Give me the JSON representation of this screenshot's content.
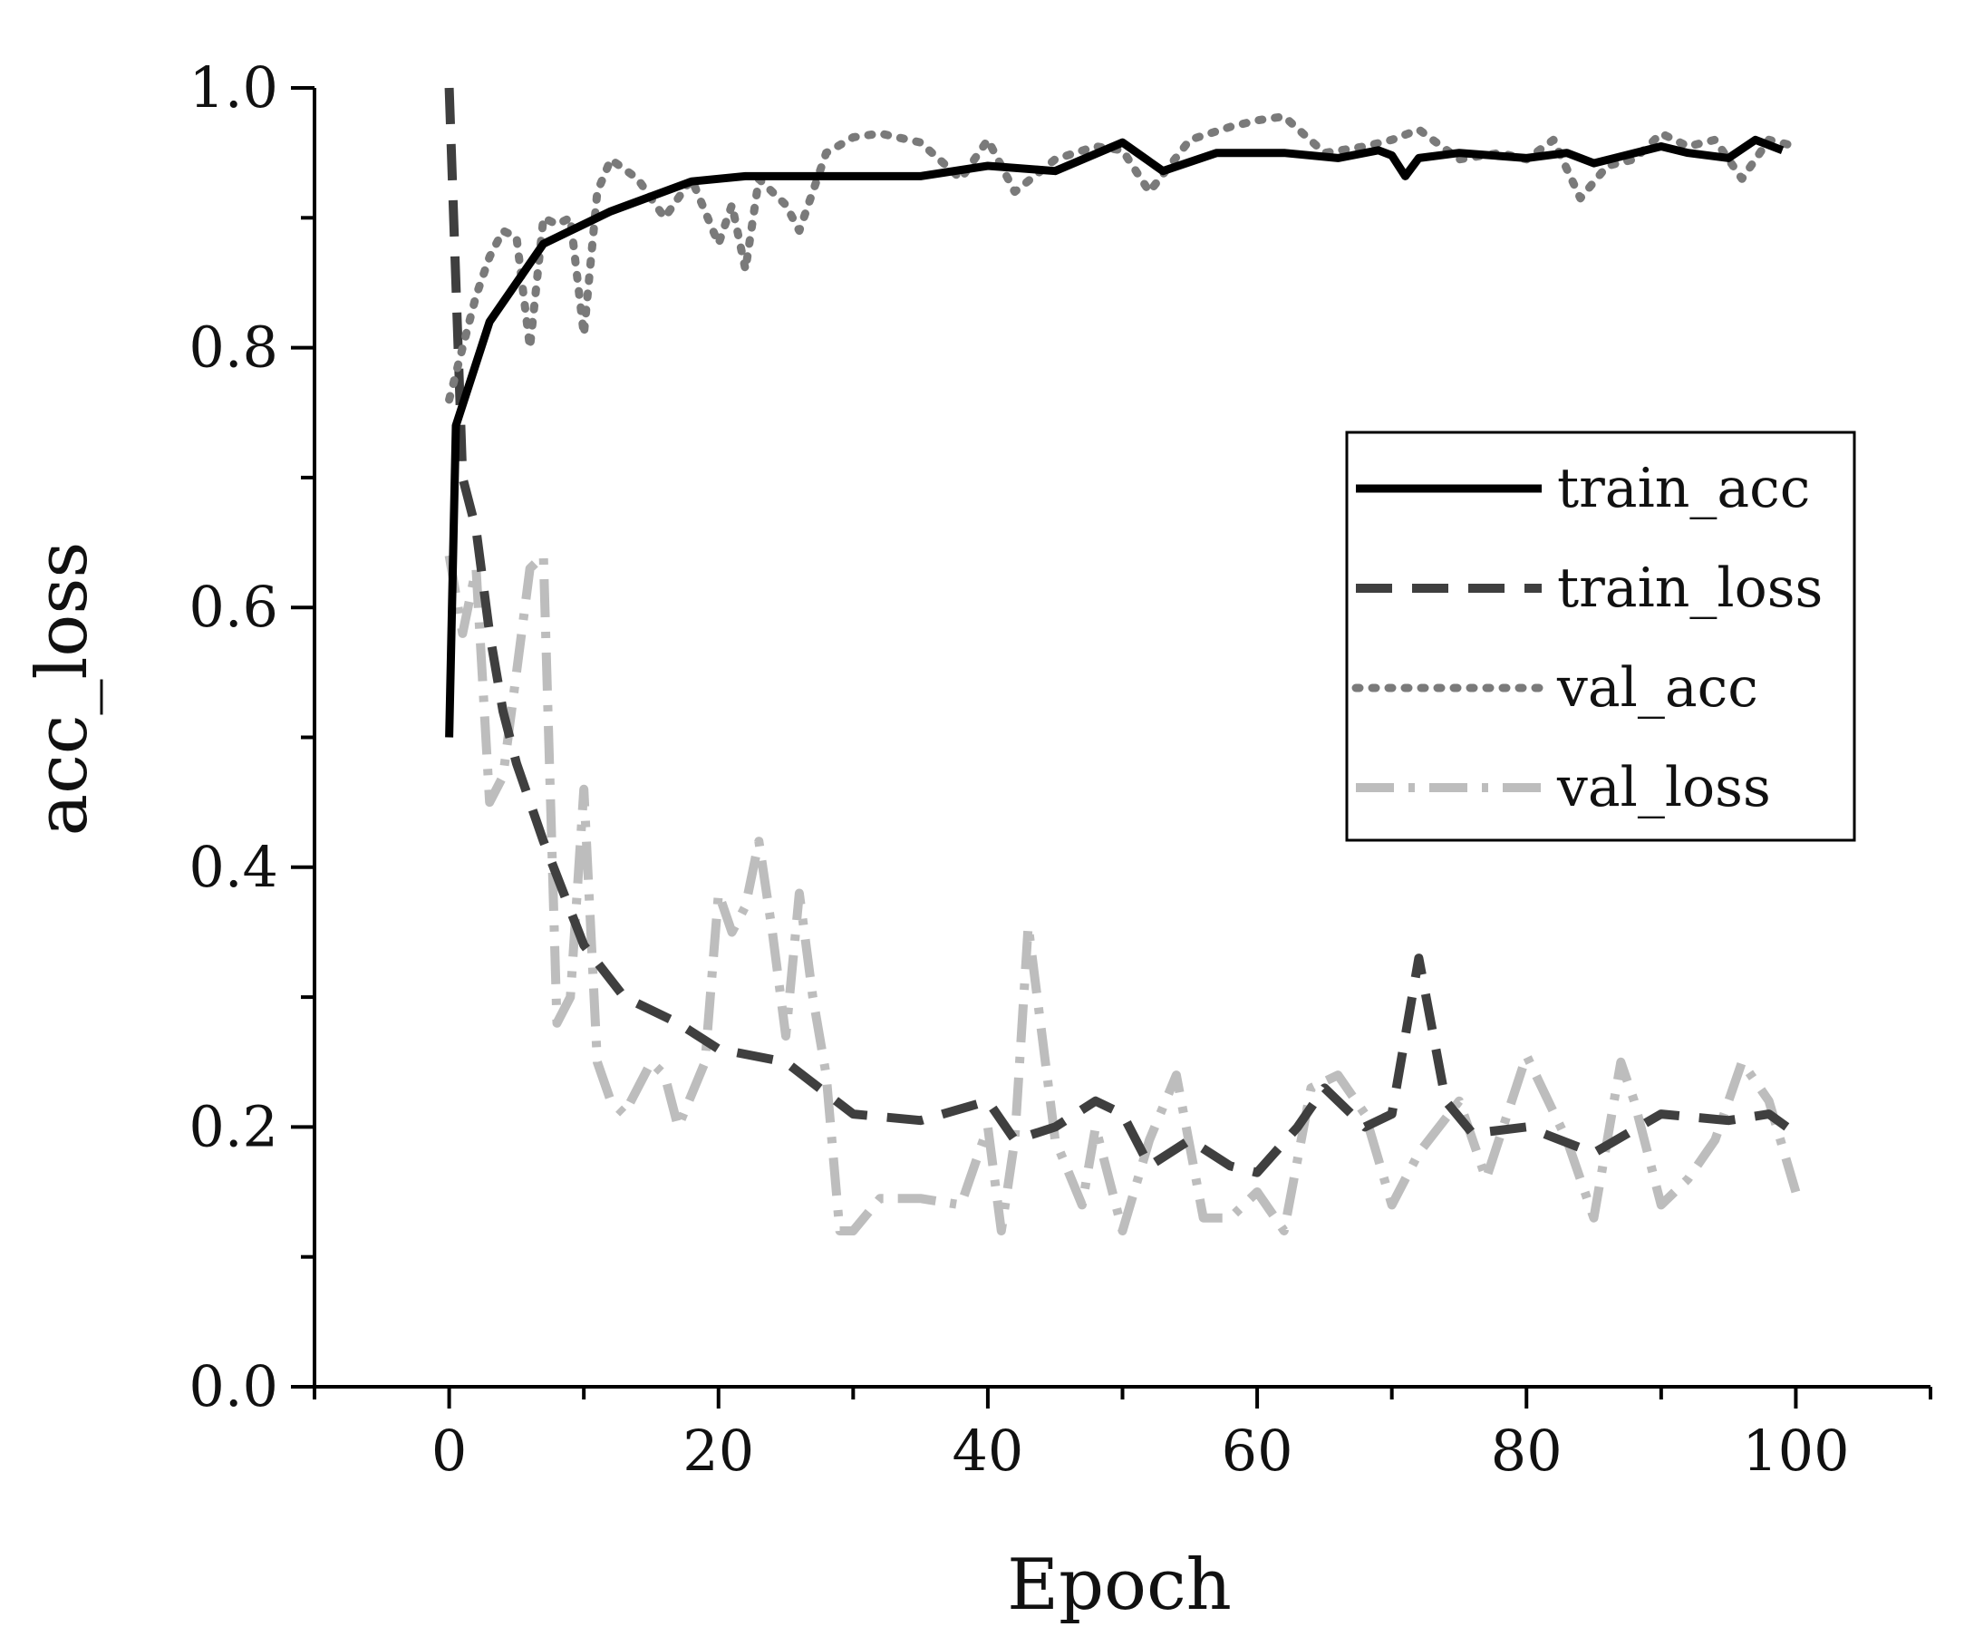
{
  "chart_data": {
    "type": "line",
    "title": "",
    "xlabel": "Epoch",
    "ylabel": "acc_loss",
    "xlim": [
      -10,
      110
    ],
    "ylim": [
      0.0,
      1.0
    ],
    "xticks": [
      0,
      20,
      40,
      60,
      80,
      100
    ],
    "xtick_labels": [
      "0",
      "20",
      "40",
      "60",
      "80",
      "100"
    ],
    "yticks": [
      0.0,
      0.2,
      0.4,
      0.6,
      0.8,
      1.0
    ],
    "ytick_labels": [
      "0.0",
      "0.2",
      "0.4",
      "0.6",
      "0.8",
      "1.0"
    ],
    "grid": false,
    "legend_position": "right",
    "series": [
      {
        "name": "train_acc",
        "color": "#000000",
        "style": "solid",
        "x": [
          0,
          0.5,
          3,
          7,
          12,
          18,
          22,
          26,
          30,
          35,
          40,
          45,
          50,
          53,
          57,
          62,
          66,
          69,
          70,
          71,
          72,
          75,
          80,
          83,
          85,
          90,
          92,
          95,
          97,
          99
        ],
        "y": [
          0.5,
          0.74,
          0.82,
          0.88,
          0.905,
          0.928,
          0.932,
          0.932,
          0.932,
          0.932,
          0.94,
          0.936,
          0.958,
          0.936,
          0.95,
          0.95,
          0.946,
          0.952,
          0.948,
          0.932,
          0.946,
          0.95,
          0.946,
          0.95,
          0.942,
          0.955,
          0.95,
          0.946,
          0.96,
          0.952
        ]
      },
      {
        "name": "train_loss",
        "color": "#3f3f3f",
        "style": "dashed",
        "x": [
          0,
          1,
          2,
          3,
          4,
          5,
          7,
          10,
          13,
          17,
          20,
          25,
          30,
          35,
          40,
          42,
          45,
          48,
          50,
          52,
          55,
          58,
          60,
          63,
          65,
          68,
          70,
          72,
          74,
          76,
          80,
          85,
          90,
          95,
          98,
          100
        ],
        "y": [
          1.0,
          0.7,
          0.66,
          0.58,
          0.52,
          0.48,
          0.42,
          0.34,
          0.3,
          0.28,
          0.26,
          0.25,
          0.21,
          0.205,
          0.22,
          0.19,
          0.2,
          0.22,
          0.21,
          0.17,
          0.19,
          0.17,
          0.165,
          0.2,
          0.23,
          0.2,
          0.21,
          0.33,
          0.22,
          0.195,
          0.2,
          0.18,
          0.21,
          0.205,
          0.21,
          0.195
        ]
      },
      {
        "name": "val_acc",
        "color": "#7a7a7a",
        "style": "dotted",
        "x": [
          0,
          1,
          2,
          3,
          4,
          5,
          6,
          7,
          8,
          9,
          10,
          11,
          12,
          14,
          16,
          18,
          20,
          21,
          22,
          23,
          25,
          26,
          28,
          30,
          32,
          35,
          38,
          40,
          42,
          45,
          48,
          50,
          52,
          55,
          58,
          60,
          62,
          65,
          68,
          70,
          72,
          75,
          78,
          80,
          82,
          84,
          86,
          88,
          90,
          92,
          94,
          96,
          98,
          100
        ],
        "y": [
          0.76,
          0.8,
          0.84,
          0.87,
          0.89,
          0.885,
          0.8,
          0.9,
          0.895,
          0.9,
          0.81,
          0.92,
          0.945,
          0.93,
          0.9,
          0.93,
          0.88,
          0.91,
          0.86,
          0.93,
          0.91,
          0.89,
          0.95,
          0.962,
          0.965,
          0.958,
          0.93,
          0.96,
          0.92,
          0.945,
          0.955,
          0.952,
          0.92,
          0.96,
          0.97,
          0.975,
          0.978,
          0.95,
          0.955,
          0.96,
          0.968,
          0.945,
          0.95,
          0.945,
          0.96,
          0.915,
          0.94,
          0.945,
          0.965,
          0.955,
          0.96,
          0.93,
          0.96,
          0.955
        ]
      },
      {
        "name": "val_loss",
        "color": "#bdbdbd",
        "style": "dashdot",
        "x": [
          0,
          1,
          2,
          3,
          4,
          5,
          6,
          7,
          8,
          9,
          10,
          11,
          12,
          13,
          15,
          16,
          17,
          19,
          20,
          21,
          22,
          23,
          24,
          25,
          26,
          27,
          28,
          29,
          30,
          32,
          35,
          38,
          40,
          41,
          42,
          43,
          45,
          47,
          48,
          50,
          52,
          54,
          56,
          58,
          60,
          62,
          64,
          66,
          68,
          70,
          72,
          75,
          77,
          80,
          83,
          85,
          87,
          88,
          90,
          92,
          94,
          96,
          98,
          100
        ],
        "y": [
          0.64,
          0.58,
          0.63,
          0.45,
          0.47,
          0.55,
          0.63,
          0.64,
          0.28,
          0.3,
          0.46,
          0.25,
          0.22,
          0.21,
          0.25,
          0.24,
          0.2,
          0.25,
          0.38,
          0.35,
          0.37,
          0.42,
          0.35,
          0.27,
          0.38,
          0.3,
          0.24,
          0.12,
          0.12,
          0.145,
          0.145,
          0.14,
          0.2,
          0.12,
          0.19,
          0.355,
          0.19,
          0.14,
          0.2,
          0.12,
          0.19,
          0.24,
          0.13,
          0.13,
          0.15,
          0.12,
          0.23,
          0.24,
          0.21,
          0.14,
          0.18,
          0.22,
          0.16,
          0.255,
          0.19,
          0.13,
          0.25,
          0.22,
          0.14,
          0.16,
          0.19,
          0.25,
          0.22,
          0.15
        ]
      }
    ]
  }
}
